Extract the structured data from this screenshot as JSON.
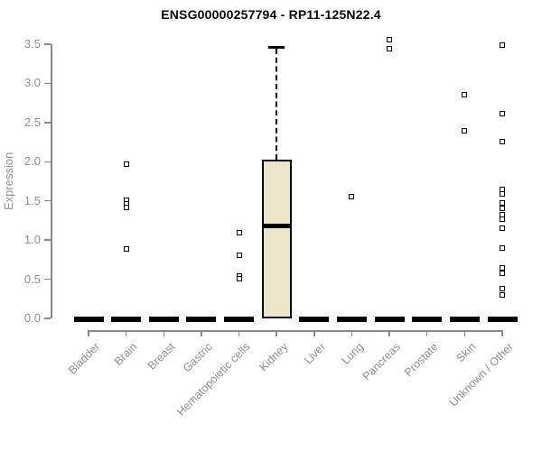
{
  "chart_data": {
    "type": "boxplot",
    "title": "ENSG00000257794 - RP11-125N22.4",
    "xlabel": "",
    "ylabel": "Expression",
    "ylim": [
      0,
      3.5
    ],
    "ytick_labels": [
      "0.0",
      "0.5",
      "1.0",
      "1.5",
      "2.0",
      "2.5",
      "3.0",
      "3.5"
    ],
    "grid": false,
    "legend": "none",
    "categories": [
      "Bladder",
      "Brain",
      "Breast",
      "Gastric",
      "Hematopoietic cells",
      "Kidney",
      "Liver",
      "Lung",
      "Pancreas",
      "Prostate",
      "Skin",
      "Unknown / Other"
    ],
    "boxes": [
      {
        "category": "Bladder",
        "q1": 0,
        "median": 0,
        "q3": 0,
        "whisker_low": 0,
        "whisker_high": 0,
        "outliers": []
      },
      {
        "category": "Brain",
        "q1": 0,
        "median": 0,
        "q3": 0,
        "whisker_low": 0,
        "whisker_high": 0,
        "outliers": [
          1.97,
          1.51,
          1.46,
          1.42,
          0.89
        ]
      },
      {
        "category": "Breast",
        "q1": 0,
        "median": 0,
        "q3": 0,
        "whisker_low": 0,
        "whisker_high": 0,
        "outliers": []
      },
      {
        "category": "Gastric",
        "q1": 0,
        "median": 0,
        "q3": 0,
        "whisker_low": 0,
        "whisker_high": 0,
        "outliers": []
      },
      {
        "category": "Hematopoietic cells",
        "q1": 0,
        "median": 0,
        "q3": 0,
        "whisker_low": 0,
        "whisker_high": 0,
        "outliers": [
          1.09,
          0.81,
          0.54,
          0.51
        ]
      },
      {
        "category": "Kidney",
        "q1": 0.0,
        "median": 1.18,
        "q3": 2.03,
        "whisker_low": 0.0,
        "whisker_high": 3.46,
        "outliers": []
      },
      {
        "category": "Liver",
        "q1": 0,
        "median": 0,
        "q3": 0,
        "whisker_low": 0,
        "whisker_high": 0,
        "outliers": []
      },
      {
        "category": "Lung",
        "q1": 0,
        "median": 0,
        "q3": 0,
        "whisker_low": 0,
        "whisker_high": 0,
        "outliers": [
          1.55
        ]
      },
      {
        "category": "Pancreas",
        "q1": 0,
        "median": 0,
        "q3": 0,
        "whisker_low": 0,
        "whisker_high": 0,
        "outliers": [
          3.56,
          3.44
        ]
      },
      {
        "category": "Prostate",
        "q1": 0,
        "median": 0,
        "q3": 0,
        "whisker_low": 0,
        "whisker_high": 0,
        "outliers": []
      },
      {
        "category": "Skin",
        "q1": 0,
        "median": 0,
        "q3": 0,
        "whisker_low": 0,
        "whisker_high": 0,
        "outliers": [
          2.86,
          2.39
        ]
      },
      {
        "category": "Unknown / Other",
        "q1": 0,
        "median": 0,
        "q3": 0,
        "whisker_low": 0,
        "whisker_high": 0,
        "outliers": [
          3.49,
          2.61,
          2.26,
          1.65,
          1.59,
          1.47,
          1.4,
          1.32,
          1.27,
          1.15,
          0.9,
          0.65,
          0.58,
          0.38,
          0.3
        ]
      }
    ],
    "colors": {
      "box_fill": "#ECE6C9",
      "box_border": "#000000",
      "median": "#000000",
      "outlier_border": "#000000",
      "outlier_fill": "#ffffff",
      "axis": "#8a8a8a",
      "tick_label": "#8d9093",
      "title": "#000000",
      "background": "#ffffff"
    }
  }
}
